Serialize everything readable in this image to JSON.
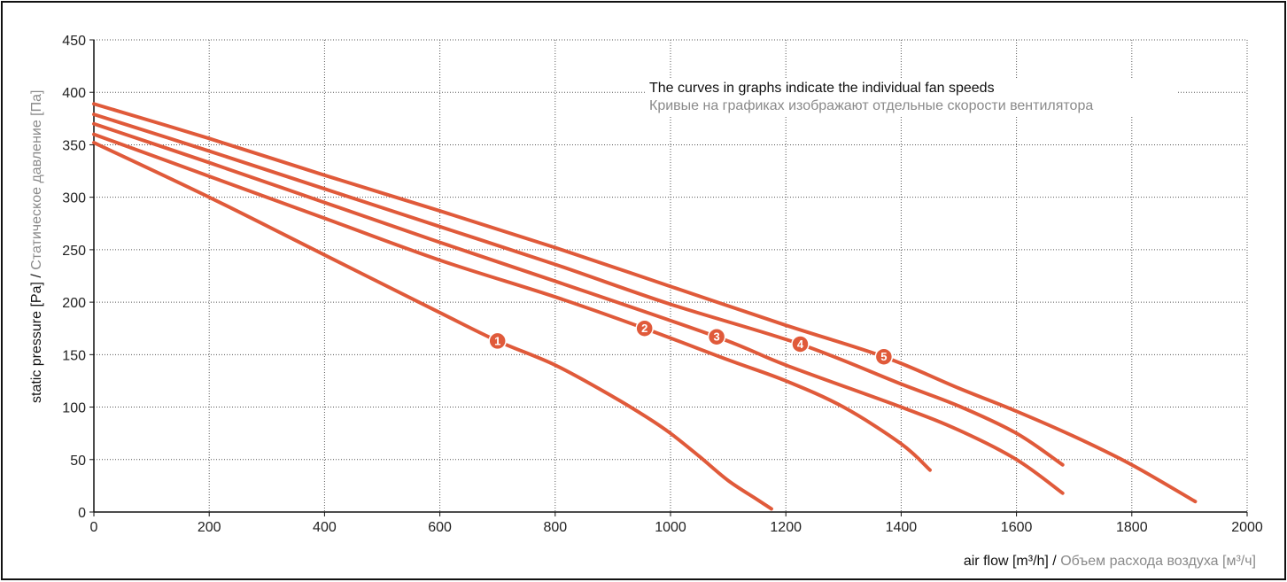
{
  "chart_data": {
    "type": "line",
    "xlabel_main": "air flow [m³/h]",
    "xlabel_sep": " / ",
    "xlabel_alt": "Объем расхода воздуха [м³/ч]",
    "ylabel_main": "static pressure [Pa]",
    "ylabel_sep": " / ",
    "ylabel_alt": "Статическое давление [Па]",
    "note_main": "The curves in graphs indicate the individual fan speeds",
    "note_alt": "Кривые на графиках изображают отдельные скорости вентилятора",
    "xlim": [
      0,
      2000
    ],
    "ylim": [
      0,
      450
    ],
    "x_ticks": [
      0,
      200,
      400,
      600,
      800,
      1000,
      1200,
      1400,
      1600,
      1800,
      2000
    ],
    "y_ticks": [
      0,
      50,
      100,
      150,
      200,
      250,
      300,
      350,
      400,
      450
    ],
    "grid": true,
    "line_color": "#e05a3a",
    "series": [
      {
        "name": "1",
        "label_x": 700,
        "label_y": 163,
        "points": [
          [
            0,
            352
          ],
          [
            200,
            300
          ],
          [
            400,
            245
          ],
          [
            600,
            190
          ],
          [
            700,
            163
          ],
          [
            800,
            140
          ],
          [
            900,
            110
          ],
          [
            960,
            90
          ],
          [
            1000,
            75
          ],
          [
            1050,
            53
          ],
          [
            1100,
            30
          ],
          [
            1150,
            12
          ],
          [
            1175,
            3
          ]
        ]
      },
      {
        "name": "2",
        "label_x": 955,
        "label_y": 175,
        "points": [
          [
            0,
            360
          ],
          [
            200,
            320
          ],
          [
            400,
            280
          ],
          [
            600,
            240
          ],
          [
            800,
            205
          ],
          [
            955,
            175
          ],
          [
            1100,
            145
          ],
          [
            1200,
            125
          ],
          [
            1300,
            100
          ],
          [
            1400,
            65
          ],
          [
            1450,
            40
          ]
        ]
      },
      {
        "name": "3",
        "label_x": 1080,
        "label_y": 167,
        "points": [
          [
            0,
            370
          ],
          [
            200,
            333
          ],
          [
            400,
            295
          ],
          [
            600,
            257
          ],
          [
            800,
            220
          ],
          [
            1080,
            167
          ],
          [
            1200,
            140
          ],
          [
            1400,
            100
          ],
          [
            1500,
            78
          ],
          [
            1600,
            50
          ],
          [
            1680,
            18
          ]
        ]
      },
      {
        "name": "4",
        "label_x": 1225,
        "label_y": 160,
        "points": [
          [
            0,
            379
          ],
          [
            200,
            344
          ],
          [
            400,
            308
          ],
          [
            600,
            272
          ],
          [
            800,
            236
          ],
          [
            1000,
            198
          ],
          [
            1225,
            160
          ],
          [
            1400,
            122
          ],
          [
            1500,
            101
          ],
          [
            1600,
            75
          ],
          [
            1680,
            45
          ]
        ]
      },
      {
        "name": "5",
        "label_x": 1370,
        "label_y": 148,
        "points": [
          [
            0,
            389
          ],
          [
            200,
            356
          ],
          [
            400,
            321
          ],
          [
            600,
            287
          ],
          [
            800,
            252
          ],
          [
            1000,
            215
          ],
          [
            1200,
            178
          ],
          [
            1370,
            148
          ],
          [
            1500,
            118
          ],
          [
            1600,
            96
          ],
          [
            1700,
            72
          ],
          [
            1800,
            45
          ],
          [
            1910,
            10
          ]
        ]
      }
    ]
  }
}
